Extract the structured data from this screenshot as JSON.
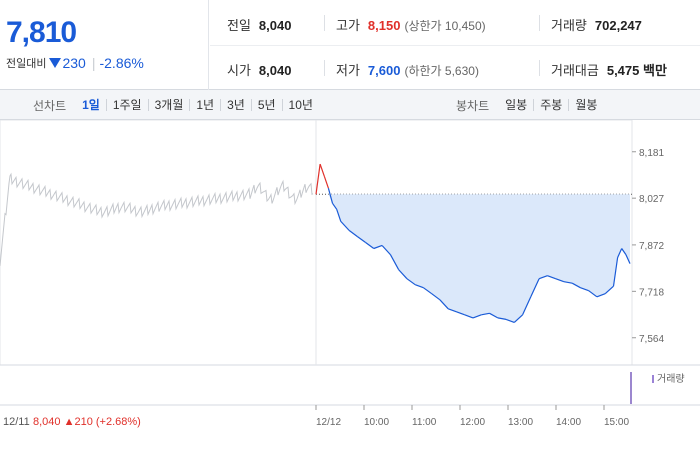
{
  "summary": {
    "price": "7,810",
    "diff_label": "전일대비",
    "diff_value": "230",
    "diff_rate": "-2.86%",
    "prev_close_label": "전일",
    "prev_close": "8,040",
    "high_label": "고가",
    "high": "8,150",
    "upper_limit": "(상한가 10,450)",
    "volume_label": "거래량",
    "volume": "702,247",
    "open_label": "시가",
    "open": "8,040",
    "low_label": "저가",
    "low": "7,600",
    "lower_limit": "(하한가 5,630)",
    "amount_label": "거래대금",
    "amount": "5,475 백만"
  },
  "tabs": {
    "line_label": "선차트",
    "line_tabs": [
      "1일",
      "1주일",
      "3개월",
      "1년",
      "3년",
      "5년",
      "10년"
    ],
    "line_active": 0,
    "candle_label": "봉차트",
    "candle_tabs": [
      "일봉",
      "주봉",
      "월봉"
    ]
  },
  "chart": {
    "prev_date": "12/11",
    "prev_summary": "8,040 ▲210 (+2.68%)",
    "volume_legend": "거래량",
    "colors": {
      "today": "#1a5bd7",
      "up": "#e0302a",
      "prev": "#c4c7cc",
      "fill": "#dbe8fa",
      "base": "#555555"
    }
  },
  "chart_data": {
    "type": "line",
    "title": "",
    "base_price": 8040,
    "ylim": [
      7530,
      8220
    ],
    "y_ticks": [
      8181,
      8027,
      7872,
      7718,
      7564
    ],
    "y_tick_labels": [
      "8,181",
      "8,027",
      "7,872",
      "7,718",
      "7,564"
    ],
    "x_tick_labels": [
      "12/12",
      "10:00",
      "11:00",
      "12:00",
      "13:00",
      "14:00",
      "15:00"
    ],
    "series": [
      {
        "x": [
          "09:00",
          "09:05",
          "09:10",
          "09:15",
          "09:20",
          "09:25",
          "09:30",
          "09:40",
          "09:50",
          "10:00",
          "10:10",
          "10:20",
          "10:30",
          "10:40",
          "10:50",
          "11:00",
          "11:10",
          "11:20",
          "11:30",
          "11:40",
          "11:50",
          "12:00",
          "12:10",
          "12:20",
          "12:30",
          "12:40",
          "12:50",
          "13:00",
          "13:10",
          "13:20",
          "13:30",
          "13:40",
          "13:50",
          "14:00",
          "14:10",
          "14:20",
          "14:30",
          "14:40",
          "14:50",
          "15:00",
          "15:05",
          "15:10",
          "15:15",
          "15:20"
        ],
        "values": [
          8040,
          8140,
          8100,
          8060,
          8010,
          7990,
          7950,
          7920,
          7900,
          7880,
          7860,
          7870,
          7840,
          7790,
          7760,
          7740,
          7730,
          7710,
          7690,
          7660,
          7650,
          7640,
          7630,
          7640,
          7645,
          7630,
          7625,
          7615,
          7640,
          7700,
          7760,
          7770,
          7760,
          7750,
          7745,
          7730,
          7720,
          7700,
          7710,
          7735,
          7830,
          7860,
          7840,
          7810
        ]
      }
    ]
  }
}
